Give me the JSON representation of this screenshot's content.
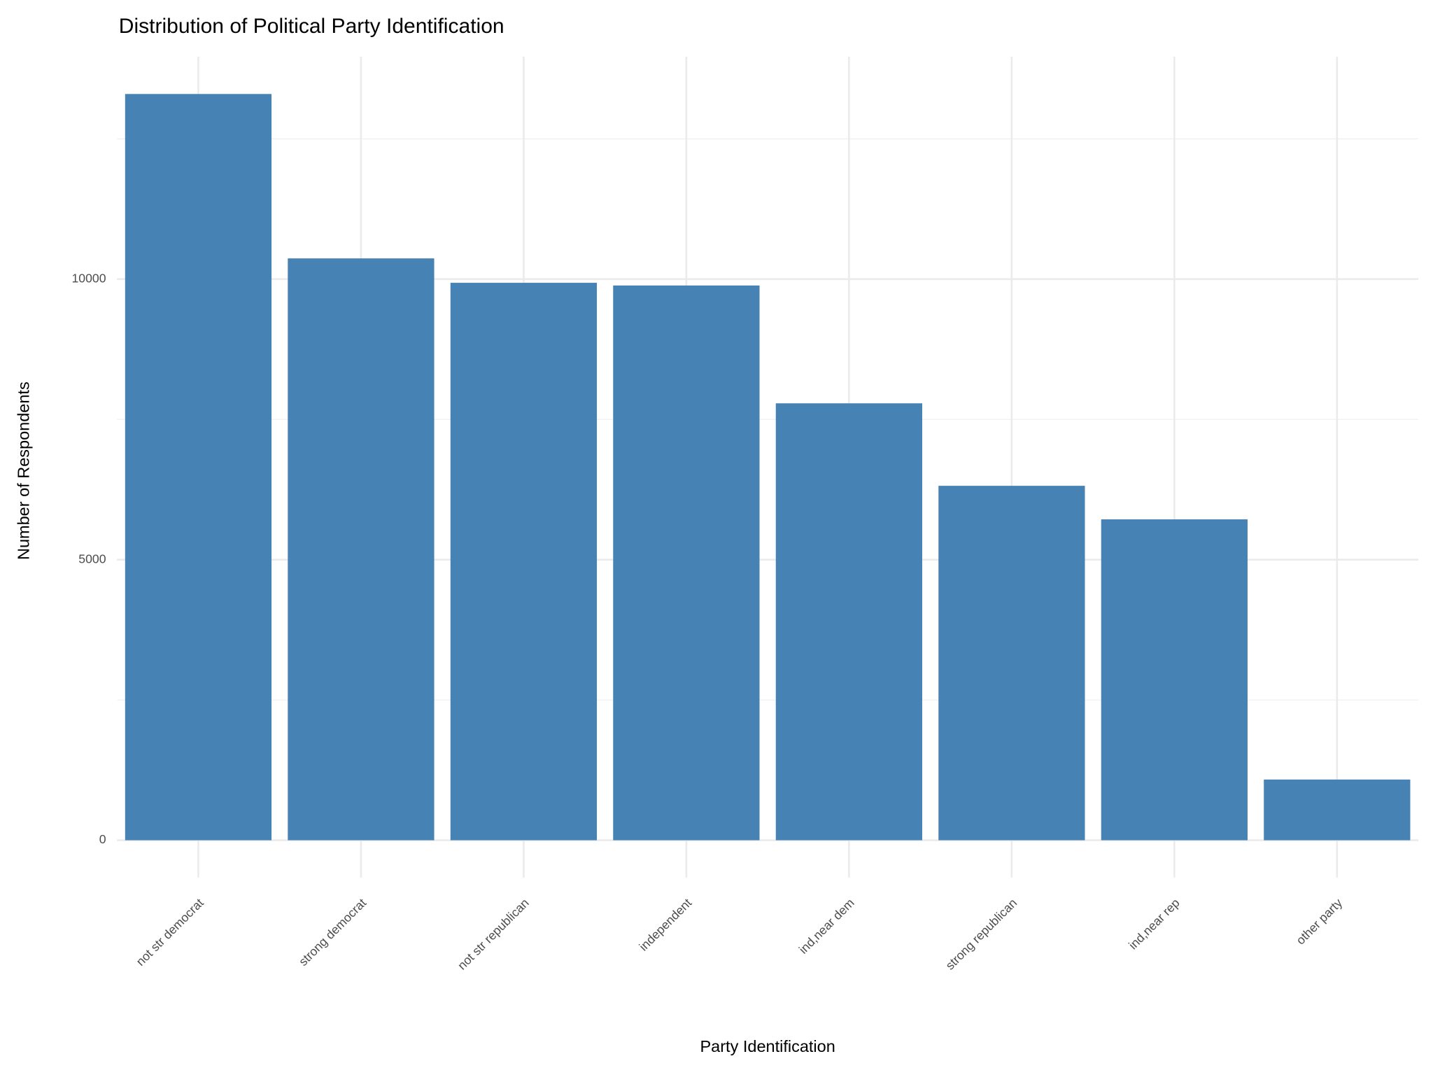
{
  "chart_data": {
    "type": "bar",
    "title": "Distribution of Political Party Identification",
    "x_label": "Party Identification",
    "y_label": "Number of Respondents",
    "categories": [
      "not str democrat",
      "strong democrat",
      "not str republican",
      "independent",
      "ind,near dem",
      "strong republican",
      "ind,near rep",
      "other party"
    ],
    "values": [
      13300,
      10370,
      9935,
      9887,
      7787,
      6317,
      5719,
      1082
    ],
    "color": "#4682b4",
    "ylim": [
      -665,
      13965
    ],
    "yticks": [
      0,
      5000,
      10000
    ],
    "minor_yticks": [
      2500,
      7500,
      12500
    ],
    "grid": true
  }
}
